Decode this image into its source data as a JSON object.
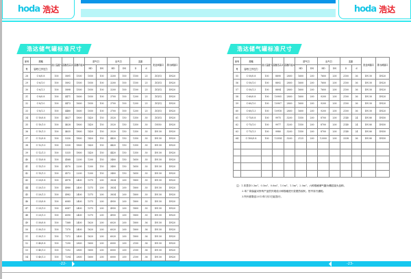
{
  "brand": {
    "en": "hoda",
    "cn": "浩达"
  },
  "title": "浩达储气罐标准尺寸",
  "header": {
    "row1": [
      "序号",
      "规格",
      "设计温度℃",
      "容器总高(H)",
      "容器内径Φ",
      "进气口",
      "出气口",
      "支座",
      "安全阀接口",
      "排污阀接口"
    ],
    "row2": [
      "号",
      "容积/工作压力",
      "HD",
      "DN",
      "HD",
      "DN",
      "D",
      "d"
    ]
  },
  "left": {
    "page": "-22-",
    "rows": [
      [
        "28",
        "C-6/0.8",
        "100",
        "5891",
        "1500",
        "1050",
        "100",
        "3200",
        "100",
        "1100",
        "25",
        "ZG(G)",
        "DN20"
      ],
      [
        "29",
        "C-6/1.0",
        "100",
        "5892",
        "1500",
        "1050",
        "100",
        "3200",
        "100",
        "1100",
        "25",
        "ZG(G)",
        "DN20"
      ],
      [
        "30",
        "C-6/1.3",
        "100",
        "5898",
        "1500",
        "1050",
        "100",
        "3200",
        "100",
        "1100",
        "25",
        "ZG(G)",
        "DN20"
      ],
      [
        "31",
        "C-8/0.8",
        "100",
        "4471",
        "1600",
        "1050",
        "100",
        "3700",
        "100",
        "1200",
        "25",
        "ZG(G)",
        "DN20"
      ],
      [
        "32",
        "C-8/1.0",
        "100",
        "4473",
        "1600",
        "1050",
        "100",
        "3700",
        "100",
        "1200",
        "25",
        "ZG(G)",
        "DN20"
      ],
      [
        "33",
        "C-8/1.3",
        "100",
        "4480",
        "1600",
        "1050",
        "100",
        "3700",
        "100",
        "1200",
        "25",
        "ZG(G)",
        "DN20"
      ],
      [
        "34",
        "C-10/0.8",
        "100",
        "4627",
        "1800",
        "1420",
        "150",
        "3520",
        "150",
        "1350",
        "30",
        "ZG(G)",
        "DN20"
      ],
      [
        "35",
        "C-10/1.0",
        "100",
        "4628",
        "1800",
        "1420",
        "150",
        "3520",
        "150",
        "1350",
        "30",
        "DN50",
        "DN20"
      ],
      [
        "36",
        "C-10/1.3",
        "100",
        "4635",
        "1800",
        "1420",
        "150",
        "3520",
        "150",
        "1350",
        "30",
        "DN 50",
        "DN20"
      ],
      [
        "37",
        "C-12/0.8",
        "100",
        "5330",
        "1800",
        "1420",
        "150",
        "4420",
        "150",
        "1350",
        "30",
        "DN 50",
        "DN20"
      ],
      [
        "38",
        "C-12/1.0",
        "100",
        "5330",
        "1800",
        "1420",
        "150",
        "4420",
        "150",
        "1350",
        "30",
        "DN 50",
        "DN20"
      ],
      [
        "39",
        "C-12/1.3",
        "100",
        "5335",
        "1800",
        "1420",
        "150",
        "4420",
        "150",
        "1350",
        "30",
        "DN 50",
        "DN20"
      ],
      [
        "40",
        "C-15/0.8",
        "100",
        "4568",
        "2200",
        "1200",
        "150",
        "3400",
        "150",
        "1650",
        "30",
        "DN 50",
        "DN20"
      ],
      [
        "41",
        "C-15/1.0",
        "100",
        "4570",
        "2200",
        "1200",
        "150",
        "3400",
        "150",
        "1650",
        "30",
        "DN 50",
        "DN20"
      ],
      [
        "42",
        "C-15/1.3",
        "100",
        "4572",
        "2200",
        "1200",
        "150",
        "3400",
        "150",
        "1650",
        "30",
        "DN 50",
        "DN20"
      ],
      [
        "43",
        "C-20/0.8",
        "100",
        "4978",
        "2400",
        "1375",
        "200",
        "3834",
        "200",
        "1800",
        "30",
        "DN 50",
        "DN20"
      ],
      [
        "44",
        "C-20/1.0",
        "100",
        "4980",
        "2400",
        "1375",
        "200",
        "3834",
        "200",
        "1800",
        "30",
        "DN 50",
        "DN20"
      ],
      [
        "45",
        "C-20/1.3",
        "100",
        "4982",
        "2400",
        "1375",
        "200",
        "3834",
        "200",
        "1800",
        "30",
        "DN 50",
        "DN20"
      ],
      [
        "46",
        "C-25/0.8",
        "100",
        "6085",
        "2400",
        "1375",
        "200",
        "4950",
        "200",
        "1800",
        "30",
        "DN 50",
        "DN20"
      ],
      [
        "47",
        "C-25/1.0",
        "100",
        "6087",
        "2400",
        "1375",
        "200",
        "4950",
        "200",
        "1800",
        "30",
        "DN 50",
        "DN20"
      ],
      [
        "48",
        "C-25/1.3",
        "100",
        "6090",
        "2400",
        "1375",
        "200",
        "4950",
        "200",
        "1800",
        "30",
        "DN 50",
        "DN20"
      ],
      [
        "49",
        "C-30/0.8",
        "100",
        "7368",
        "2400",
        "1620",
        "200",
        "6020",
        "200",
        "1800",
        "36",
        "DN 50",
        "DN20"
      ],
      [
        "50",
        "C-30/1.0",
        "100",
        "7370",
        "2400",
        "1620",
        "200",
        "6020",
        "200",
        "1800",
        "36",
        "DN 50",
        "DN20"
      ],
      [
        "51",
        "C-30/1.3",
        "100",
        "7372",
        "2400",
        "1620",
        "200",
        "6020",
        "200",
        "1800",
        "36",
        "DN 50",
        "DN20"
      ],
      [
        "52",
        "C-40/0.8",
        "100",
        "7290",
        "2800",
        "1600",
        "200",
        "6000",
        "200",
        "2100",
        "36",
        "DN 50",
        "DN20"
      ],
      [
        "53",
        "C-40/1.0",
        "100",
        "7292",
        "2800",
        "1600",
        "200",
        "6000",
        "200",
        "2100",
        "36",
        "DN 50",
        "DN20"
      ],
      [
        "54",
        "C-40/1.3",
        "100",
        "7294",
        "2800",
        "1600",
        "200",
        "6000",
        "200",
        "2100",
        "36",
        "DN 50",
        "DN20"
      ]
    ]
  },
  "right": {
    "page": "-23-",
    "rows": [
      [
        "55",
        "C-50/0.8",
        "100",
        "8890",
        "2800",
        "1600",
        "200",
        "7600",
        "200",
        "2100",
        "36",
        "DN 50",
        "DN20"
      ],
      [
        "56",
        "C-50/1.0",
        "100",
        "8892",
        "2800",
        "1600",
        "200",
        "7600",
        "200",
        "2100",
        "36",
        "DN 50",
        "DN20"
      ],
      [
        "57",
        "C-50/1.3",
        "100",
        "8894",
        "2800",
        "1600",
        "200",
        "7600",
        "200",
        "2100",
        "36",
        "DN 50",
        "DN20"
      ],
      [
        "58",
        "C-60/0.8",
        "100",
        "10905",
        "2800",
        "1600",
        "200",
        "9200",
        "200",
        "2100",
        "36",
        "DN 50",
        "DN20"
      ],
      [
        "59",
        "C-60/1.0",
        "100",
        "10907",
        "2800",
        "1600",
        "200",
        "9200",
        "200",
        "2100",
        "36",
        "DN 50",
        "DN20"
      ],
      [
        "60",
        "C-60/1.3",
        "100",
        "10918",
        "2800",
        "1600",
        "200",
        "9200",
        "200",
        "2100",
        "36",
        "DN 50",
        "DN20"
      ],
      [
        "61",
        "C-75/0.8",
        "100",
        "9975",
        "3200",
        "1550",
        "200",
        "8700",
        "200",
        "2140",
        "24",
        "DN 80",
        "DN50"
      ],
      [
        "62",
        "C-75/1.0",
        "100",
        "9977",
        "3200",
        "1550",
        "200",
        "8700",
        "200",
        "2140",
        "24",
        "DN 80",
        "DN50"
      ],
      [
        "63",
        "C-75/1.3",
        "100",
        "9980",
        "3200",
        "1550",
        "200",
        "8700",
        "200",
        "2140",
        "24",
        "DN 80",
        "DN50"
      ],
      [
        "64",
        "C-100/0.8",
        "100",
        "13354",
        "3200",
        "2125",
        "200",
        "12000",
        "200",
        "3338",
        "36",
        "DN 80",
        "DN50"
      ]
    ],
    "notes": [
      "注：1.本表中0.3m³、0.5m³、0.6m³、1.0m³、1.5m³、2.0m³，六种规格储气罐为螺纹接头品种。",
      "2.本厂将保留对所有产品的外观设计和规格进行变更的权利，恕不另行通知。",
      "3.所列参数自2013年1月1日起执行。"
    ]
  },
  "colors": {
    "accent": "#16c7ef",
    "brand_red": "#e8202a",
    "tab": "#2ee8d8"
  }
}
